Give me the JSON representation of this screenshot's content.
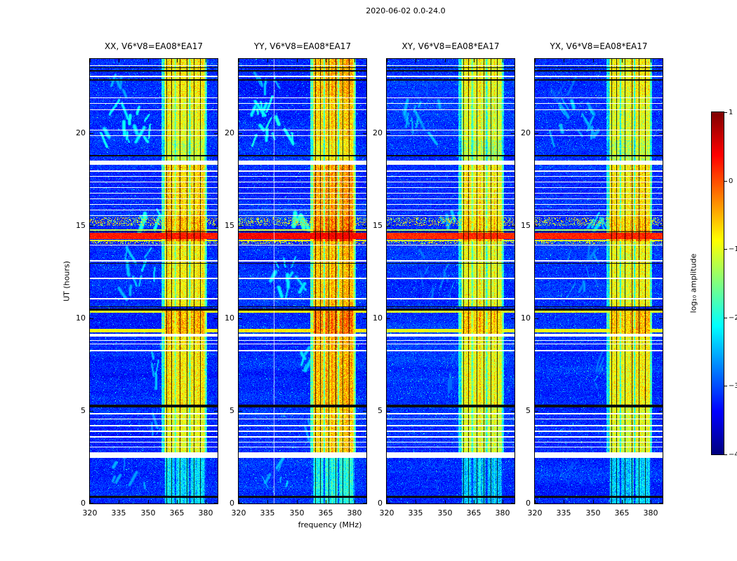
{
  "figure": {
    "title": "2020-06-02 0.0-24.0",
    "xlabel": "frequency (MHz)",
    "ylabel": "UT (hours)",
    "colorbar_label": "log₁₀ amplitude"
  },
  "panels": [
    {
      "id": "xx",
      "title": "XX, V6*V8=EA08*EA17",
      "seed": 11,
      "rfi_boost": 0.0,
      "wisp_boost": 0.0,
      "white_vline_mhz": null
    },
    {
      "id": "yy",
      "title": "YY, V6*V8=EA08*EA17",
      "seed": 22,
      "rfi_boost": 0.25,
      "wisp_boost": 0.1,
      "white_vline_mhz": 338
    },
    {
      "id": "xy",
      "title": "XY, V6*V8=EA08*EA17",
      "seed": 33,
      "rfi_boost": -0.15,
      "wisp_boost": -0.45,
      "white_vline_mhz": null
    },
    {
      "id": "yx",
      "title": "YX, V6*V8=EA08*EA17",
      "seed": 44,
      "rfi_boost": -0.1,
      "wisp_boost": -0.35,
      "white_vline_mhz": null
    }
  ],
  "axes": {
    "x_ticks": [
      "320",
      "335",
      "350",
      "365",
      "380"
    ],
    "x_tick_values": [
      320,
      335,
      350,
      365,
      380
    ],
    "y_ticks": [
      "0",
      "5",
      "10",
      "15",
      "20"
    ],
    "y_tick_values": [
      0,
      5,
      10,
      15,
      20
    ]
  },
  "colorbar": {
    "tick_labels": [
      "1",
      "0",
      "−1",
      "−2",
      "−3",
      "−4"
    ],
    "tick_values": [
      1,
      0,
      -1,
      -2,
      -3,
      -4
    ],
    "vmin": -4,
    "vmax": 1
  },
  "chart_data": {
    "type": "heatmap",
    "title": "2020-06-02 0.0-24.0",
    "subplot_titles": [
      "XX, V6*V8=EA08*EA17",
      "YY, V6*V8=EA08*EA17",
      "XY, V6*V8=EA08*EA17",
      "YX, V6*V8=EA08*EA17"
    ],
    "xlabel": "frequency (MHz)",
    "ylabel": "UT (hours)",
    "zlabel": "log₁₀ amplitude",
    "x_range_mhz": [
      320,
      386
    ],
    "y_range_hours": [
      0,
      24
    ],
    "z_range_log10": [
      -4,
      1
    ],
    "colormap": "jet",
    "legend_position": "right-colorbar",
    "grid": false,
    "background_level": -3.15,
    "rfi_band": {
      "freq_mhz": [
        357,
        380.5
      ],
      "sub_band_gaps_mhz": [
        358.3,
        364.2,
        371.6
      ],
      "flagged_channels_mhz": [
        359.5,
        362.0,
        366.5,
        370.2,
        373.8,
        377.0
      ]
    },
    "rfi_time_profile": [
      [
        0.0,
        2.45,
        -2.3
      ],
      [
        2.75,
        5.2,
        -0.95
      ],
      [
        5.35,
        9.0,
        -0.8
      ],
      [
        9.15,
        10.45,
        -0.5
      ],
      [
        10.65,
        14.15,
        -0.85
      ],
      [
        14.15,
        14.75,
        -0.25
      ],
      [
        14.75,
        15.5,
        -0.55
      ],
      [
        15.5,
        18.3,
        -0.7
      ],
      [
        18.5,
        19.6,
        -1.15
      ],
      [
        19.6,
        22.0,
        -0.95
      ],
      [
        22.0,
        24.0,
        -0.8
      ]
    ],
    "broadband_events": [
      [
        9.32,
        0.18,
        -0.9
      ],
      [
        10.36,
        0.14,
        -1.05
      ],
      [
        14.2,
        0.09,
        -1.0
      ],
      [
        14.45,
        0.32,
        0.25
      ],
      [
        14.78,
        0.08,
        -1.2
      ]
    ],
    "flagged_black": [
      [
        0.36,
        0.08
      ],
      [
        5.27,
        0.14
      ],
      [
        10.47,
        0.09
      ],
      [
        10.62,
        0.04
      ],
      [
        12.95,
        0.04
      ],
      [
        14.67,
        0.07
      ],
      [
        18.78,
        0.08
      ],
      [
        22.87,
        0.08
      ],
      [
        23.36,
        0.1
      ],
      [
        23.52,
        0.04
      ]
    ],
    "dropouts_white": [
      [
        2.6,
        0.3
      ],
      [
        3.05,
        0.05
      ],
      [
        3.3,
        0.05
      ],
      [
        3.6,
        0.05
      ],
      [
        3.9,
        0.05
      ],
      [
        4.2,
        0.05
      ],
      [
        4.55,
        0.05
      ],
      [
        4.85,
        0.05
      ],
      [
        8.25,
        0.05
      ],
      [
        8.6,
        0.05
      ],
      [
        8.8,
        0.05
      ],
      [
        9.07,
        0.15
      ],
      [
        11.05,
        0.05
      ],
      [
        12.15,
        0.05
      ],
      [
        13.1,
        0.05
      ],
      [
        13.95,
        0.06
      ],
      [
        15.55,
        0.05
      ],
      [
        15.85,
        0.05
      ],
      [
        16.15,
        0.06
      ],
      [
        16.45,
        0.05
      ],
      [
        16.75,
        0.06
      ],
      [
        17.05,
        0.05
      ],
      [
        17.35,
        0.06
      ],
      [
        17.65,
        0.05
      ],
      [
        17.95,
        0.06
      ],
      [
        18.4,
        0.2
      ],
      [
        19.85,
        0.05
      ],
      [
        20.15,
        0.05
      ],
      [
        21.25,
        0.05
      ],
      [
        21.6,
        0.05
      ],
      [
        21.9,
        0.05
      ],
      [
        23.05,
        0.05
      ],
      [
        23.65,
        0.05
      ]
    ],
    "speckle_rows": [
      [
        10.28,
        10.5
      ],
      [
        14.0,
        14.2
      ],
      [
        15.0,
        15.45
      ]
    ],
    "scintillation_patches": [
      {
        "t0": 19.6,
        "t1": 21.6,
        "f0": 327,
        "f1": 352,
        "n": 14,
        "level": -2.1
      },
      {
        "t0": 11.3,
        "t1": 13.6,
        "f0": 336,
        "f1": 356,
        "n": 10,
        "level": -2.35
      },
      {
        "t0": 15.0,
        "t1": 15.5,
        "f0": 347,
        "f1": 361,
        "n": 6,
        "level": -1.95
      },
      {
        "t0": 6.3,
        "t1": 8.3,
        "f0": 351,
        "f1": 360,
        "n": 7,
        "level": -2.4
      },
      {
        "t0": 0.9,
        "t1": 2.3,
        "f0": 332,
        "f1": 350,
        "n": 6,
        "level": -2.6
      },
      {
        "t0": 21.9,
        "t1": 23.0,
        "f0": 330,
        "f1": 346,
        "n": 5,
        "level": -2.55
      },
      {
        "t0": 3.0,
        "t1": 4.6,
        "f0": 352,
        "f1": 360,
        "n": 4,
        "level": -2.6
      }
    ]
  }
}
